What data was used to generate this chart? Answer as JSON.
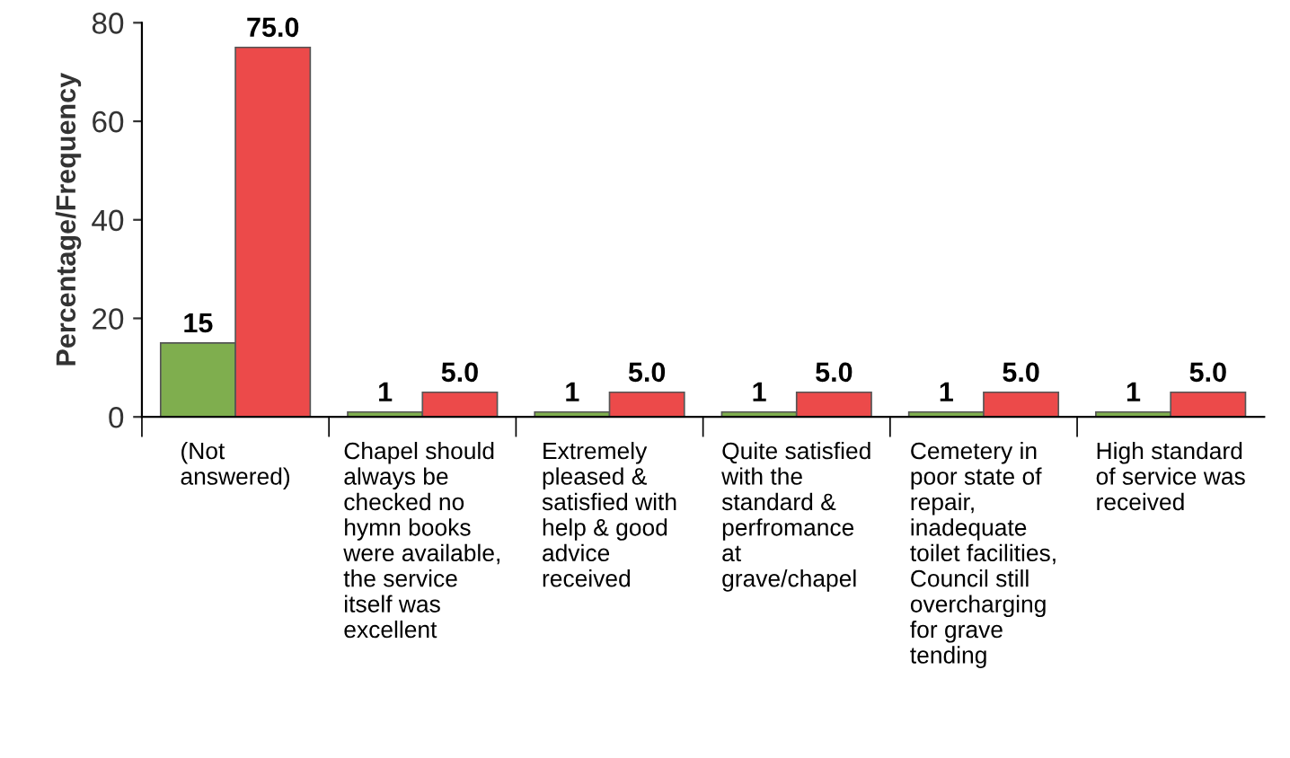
{
  "chart_data": {
    "type": "bar",
    "ylabel": "Percentage/Frequency",
    "categories": [
      "(Not\nanswered)",
      "Chapel should\nalways be\nchecked no\nhymn books\nwere available,\nthe service\nitself was\nexcellent",
      "Extremely\npleased &\nsatisfied with\nhelp & good\nadvice\nreceived",
      "Quite satisfied\nwith the\nstandard &\nperfromance\nat\ngrave/chapel",
      "Cemetery in\npoor state of\nrepair,\ninadequate\ntoilet facilities,\nCouncil still\novercharging\nfor grave\ntending",
      "High standard\nof service was\nreceived"
    ],
    "series": [
      {
        "color": "#7fae4e",
        "values": [
          15,
          1,
          1,
          1,
          1,
          1
        ],
        "value_labels": [
          "15",
          "1",
          "1",
          "1",
          "1",
          "1"
        ]
      },
      {
        "color": "#ec4a4a",
        "values": [
          75.0,
          5.0,
          5.0,
          5.0,
          5.0,
          5.0
        ],
        "value_labels": [
          "75.0",
          "5.0",
          "5.0",
          "5.0",
          "5.0",
          "5.0"
        ]
      }
    ],
    "ylim": [
      0,
      80
    ],
    "yticks": [
      0,
      20,
      40,
      60,
      80
    ],
    "grid": false
  }
}
